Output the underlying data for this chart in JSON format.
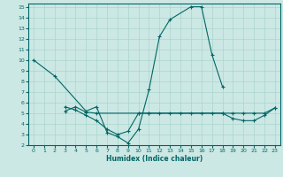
{
  "xlabel": "Humidex (Indice chaleur)",
  "bg_color": "#cce8e4",
  "grid_color": "#aad4cc",
  "line_color": "#006666",
  "xlim": [
    -0.5,
    23.5
  ],
  "ylim": [
    2,
    15.3
  ],
  "xticks": [
    0,
    1,
    2,
    3,
    4,
    5,
    6,
    7,
    8,
    9,
    10,
    11,
    12,
    13,
    14,
    15,
    16,
    17,
    18,
    19,
    20,
    21,
    22,
    23
  ],
  "yticks": [
    2,
    3,
    4,
    5,
    6,
    7,
    8,
    9,
    10,
    11,
    12,
    13,
    14,
    15
  ],
  "line1_x": [
    0,
    2,
    5,
    6,
    7,
    8,
    9,
    10,
    11,
    12,
    13,
    15,
    16,
    17,
    18
  ],
  "line1_y": [
    10,
    8.5,
    5.2,
    5.6,
    3.2,
    2.8,
    2.2,
    3.5,
    7.2,
    12.2,
    13.8,
    15,
    15,
    10.5,
    7.5
  ],
  "line2_x": [
    3,
    4,
    5,
    6,
    10,
    11,
    12,
    13,
    14,
    15,
    16,
    17,
    18,
    19,
    20,
    21,
    22,
    23
  ],
  "line2_y": [
    5.2,
    5.6,
    5.1,
    5.0,
    5.0,
    5.0,
    5.0,
    5.0,
    5.0,
    5.0,
    5.0,
    5.0,
    5.0,
    5.0,
    5.0,
    5.0,
    5.0,
    5.5
  ],
  "line3_x": [
    3,
    4,
    5,
    6,
    7,
    8,
    9,
    10,
    11,
    18,
    19,
    20,
    21,
    22,
    23
  ],
  "line3_y": [
    5.6,
    5.3,
    4.8,
    4.3,
    3.5,
    3.0,
    3.3,
    5.0,
    5.0,
    5.0,
    4.5,
    4.3,
    4.3,
    4.8,
    5.5
  ]
}
